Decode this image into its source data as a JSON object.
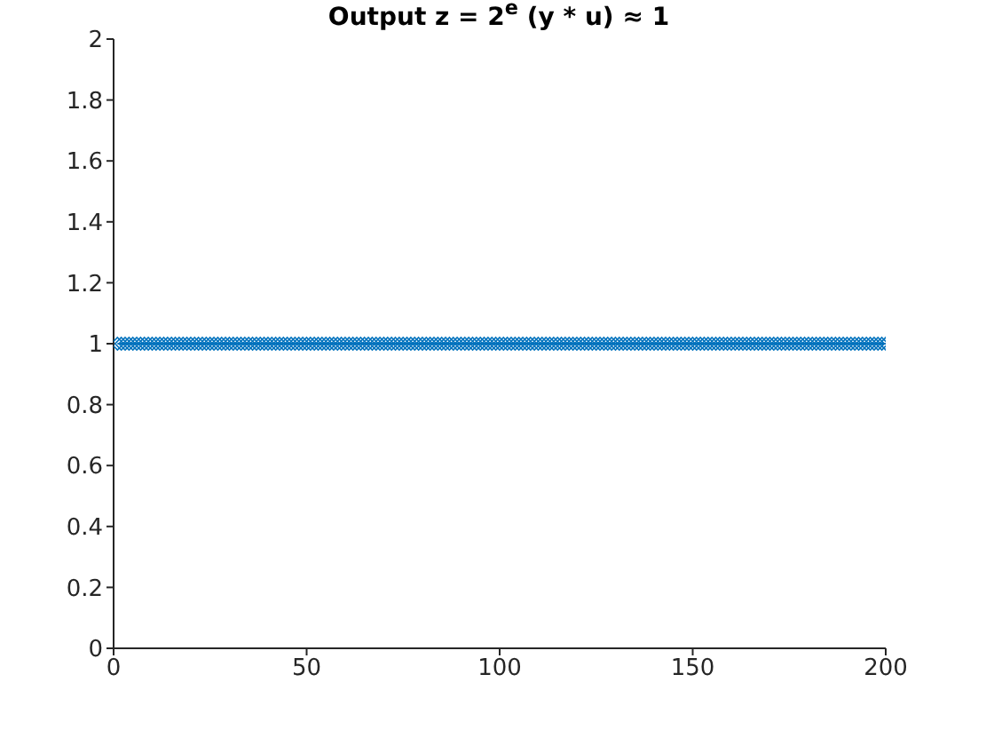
{
  "chart_data": {
    "type": "line",
    "title": "Output z = 2$^{e}$ (y * u) ≈ 1",
    "x": [
      1,
      2,
      3,
      4,
      5,
      6,
      7,
      8,
      9,
      10,
      11,
      12,
      13,
      14,
      15,
      16,
      17,
      18,
      19,
      20,
      21,
      22,
      23,
      24,
      25,
      26,
      27,
      28,
      29,
      30,
      31,
      32,
      33,
      34,
      35,
      36,
      37,
      38,
      39,
      40,
      41,
      42,
      43,
      44,
      45,
      46,
      47,
      48,
      49,
      50,
      51,
      52,
      53,
      54,
      55,
      56,
      57,
      58,
      59,
      60,
      61,
      62,
      63,
      64,
      65,
      66,
      67,
      68,
      69,
      70,
      71,
      72,
      73,
      74,
      75,
      76,
      77,
      78,
      79,
      80,
      81,
      82,
      83,
      84,
      85,
      86,
      87,
      88,
      89,
      90,
      91,
      92,
      93,
      94,
      95,
      96,
      97,
      98,
      99,
      100,
      101,
      102,
      103,
      104,
      105,
      106,
      107,
      108,
      109,
      110,
      111,
      112,
      113,
      114,
      115,
      116,
      117,
      118,
      119,
      120,
      121,
      122,
      123,
      124,
      125,
      126,
      127,
      128,
      129,
      130,
      131,
      132,
      133,
      134,
      135,
      136,
      137,
      138,
      139,
      140,
      141,
      142,
      143,
      144,
      145,
      146,
      147,
      148,
      149,
      150,
      151,
      152,
      153,
      154,
      155,
      156,
      157,
      158,
      159,
      160,
      161,
      162,
      163,
      164,
      165,
      166,
      167,
      168,
      169,
      170,
      171,
      172,
      173,
      174,
      175,
      176,
      177,
      178,
      179,
      180,
      181,
      182,
      183,
      184,
      185,
      186,
      187,
      188,
      189,
      190,
      191,
      192,
      193,
      194,
      195,
      196,
      197,
      198,
      199,
      200
    ],
    "series": [
      {
        "color": "#0072bd",
        "values": [
          1,
          1,
          1,
          1,
          1,
          1,
          1,
          1,
          1,
          1,
          1,
          1,
          1,
          1,
          1,
          1,
          1,
          1,
          1,
          1,
          1,
          1,
          1,
          1,
          1,
          1,
          1,
          1,
          1,
          1,
          1,
          1,
          1,
          1,
          1,
          1,
          1,
          1,
          1,
          1,
          1,
          1,
          1,
          1,
          1,
          1,
          1,
          1,
          1,
          1,
          1,
          1,
          1,
          1,
          1,
          1,
          1,
          1,
          1,
          1,
          1,
          1,
          1,
          1,
          1,
          1,
          1,
          1,
          1,
          1,
          1,
          1,
          1,
          1,
          1,
          1,
          1,
          1,
          1,
          1,
          1,
          1,
          1,
          1,
          1,
          1,
          1,
          1,
          1,
          1,
          1,
          1,
          1,
          1,
          1,
          1,
          1,
          1,
          1,
          1,
          1,
          1,
          1,
          1,
          1,
          1,
          1,
          1,
          1,
          1,
          1,
          1,
          1,
          1,
          1,
          1,
          1,
          1,
          1,
          1,
          1,
          1,
          1,
          1,
          1,
          1,
          1,
          1,
          1,
          1,
          1,
          1,
          1,
          1,
          1,
          1,
          1,
          1,
          1,
          1,
          1,
          1,
          1,
          1,
          1,
          1,
          1,
          1,
          1,
          1,
          1,
          1,
          1,
          1,
          1,
          1,
          1,
          1,
          1,
          1,
          1,
          1,
          1,
          1,
          1,
          1,
          1,
          1,
          1,
          1,
          1,
          1,
          1,
          1,
          1,
          1,
          1,
          1,
          1,
          1,
          1,
          1,
          1,
          1,
          1,
          1,
          1,
          1,
          1,
          1,
          1,
          1,
          1,
          1,
          1,
          1,
          1,
          1,
          1,
          1
        ]
      }
    ],
    "xlim": [
      0,
      200
    ],
    "xticks": [
      0,
      50,
      100,
      150,
      200
    ],
    "ylim": [
      0,
      2
    ],
    "yticks": [
      0,
      0.2,
      0.4,
      0.6,
      0.8,
      1,
      1.2,
      1.4,
      1.6,
      1.8,
      2
    ],
    "grid": false,
    "legend": false,
    "marker": "diamond",
    "line_style": "solid"
  }
}
